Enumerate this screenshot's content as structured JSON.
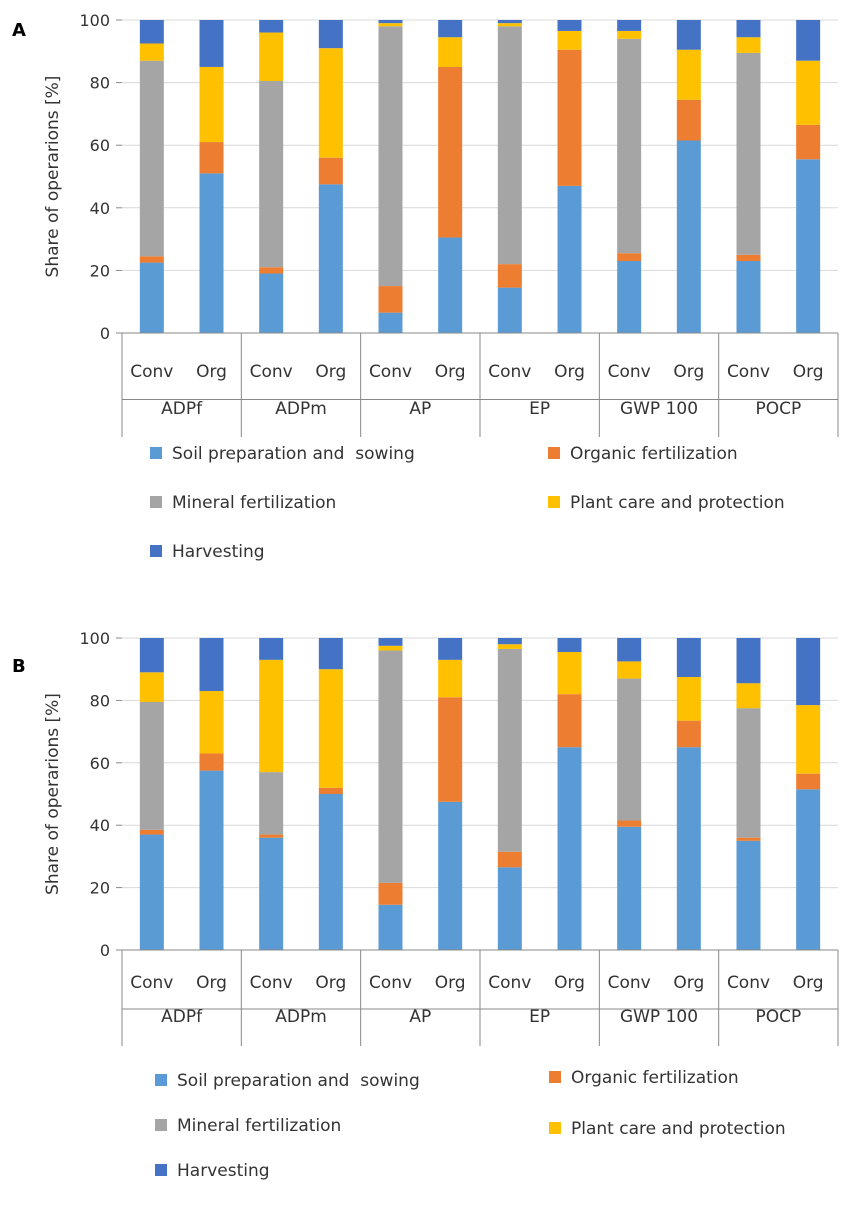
{
  "charts": [
    {
      "panel_label": "A",
      "chart_data": {
        "type": "bar",
        "stacked": true,
        "ylabel": "Share of operarions [%]",
        "ylim": [
          0,
          100
        ],
        "yticks": [
          0,
          20,
          40,
          60,
          80,
          100
        ],
        "grid": true,
        "groups": [
          "ADPf",
          "ADPm",
          "AP",
          "EP",
          "GWP 100",
          "POCP"
        ],
        "subcategories": [
          "Conv",
          "Org"
        ],
        "categories": [
          "ADPf Conv",
          "ADPf Org",
          "ADPm Conv",
          "ADPm Org",
          "AP Conv",
          "AP Org",
          "EP Conv",
          "EP Org",
          "GWP 100 Conv",
          "GWP 100 Org",
          "POCP Conv",
          "POCP Org"
        ],
        "series": [
          {
            "name": "Soil preparation and  sowing",
            "values": [
              22.5,
              51,
              19,
              47.5,
              6.5,
              30.5,
              14.5,
              47,
              23,
              61.5,
              23,
              55.5
            ]
          },
          {
            "name": "Organic fertilization",
            "values": [
              2,
              10,
              2,
              8.5,
              8.5,
              54.5,
              7.5,
              43.5,
              2.5,
              13,
              2,
              11
            ]
          },
          {
            "name": "Mineral fertilization",
            "values": [
              62.5,
              0,
              59.5,
              0,
              83,
              0,
              76,
              0,
              68.5,
              0,
              64.5,
              0
            ]
          },
          {
            "name": "Plant care and protection",
            "values": [
              5.5,
              24,
              15.5,
              35,
              1,
              9.5,
              1,
              6,
              2.5,
              16,
              5,
              20.5
            ]
          },
          {
            "name": "Harvesting",
            "values": [
              7.5,
              15,
              4,
              9,
              1,
              5.5,
              1,
              3.5,
              3.5,
              9.5,
              5.5,
              13
            ]
          }
        ],
        "legend_position": "bottom"
      }
    },
    {
      "panel_label": "B",
      "chart_data": {
        "type": "bar",
        "stacked": true,
        "ylabel": "Share of operarions [%]",
        "ylim": [
          0,
          100
        ],
        "yticks": [
          0,
          20,
          40,
          60,
          80,
          100
        ],
        "grid": true,
        "groups": [
          "ADPf",
          "ADPm",
          "AP",
          "EP",
          "GWP 100",
          "POCP"
        ],
        "subcategories": [
          "Conv",
          "Org"
        ],
        "categories": [
          "ADPf Conv",
          "ADPf Org",
          "ADPm Conv",
          "ADPm Org",
          "AP Conv",
          "AP Org",
          "EP Conv",
          "EP Org",
          "GWP 100 Conv",
          "GWP 100 Org",
          "POCP Conv",
          "POCP Org"
        ],
        "series": [
          {
            "name": "Soil preparation and  sowing",
            "values": [
              37,
              57.5,
              36,
              50,
              14.5,
              47.5,
              26.5,
              65,
              39.5,
              65,
              35,
              51.5
            ]
          },
          {
            "name": "Organic fertilization",
            "values": [
              1.5,
              5.5,
              1,
              2,
              7,
              33.5,
              5,
              17,
              2,
              8.5,
              1,
              5
            ]
          },
          {
            "name": "Mineral fertilization",
            "values": [
              41,
              0,
              20,
              0,
              74.5,
              0,
              65,
              0,
              45.5,
              0,
              41.5,
              0
            ]
          },
          {
            "name": "Plant care and protection",
            "values": [
              9.5,
              20,
              36,
              38,
              1.5,
              12,
              1.5,
              13.5,
              5.5,
              14,
              8,
              22
            ]
          },
          {
            "name": "Harvesting",
            "values": [
              11,
              17,
              7,
              10,
              2.5,
              7,
              2,
              4.5,
              7.5,
              12.5,
              14.5,
              21.5
            ]
          }
        ],
        "legend_position": "bottom"
      }
    }
  ],
  "colors": {
    "Soil preparation and  sowing": "#5b9bd5",
    "Organic fertilization": "#ed7d31",
    "Mineral fertilization": "#a5a5a5",
    "Plant care and protection": "#ffc000",
    "Harvesting": "#4472c4",
    "axis": "#888888",
    "grid": "#d9d9d9",
    "text": "#333333"
  }
}
